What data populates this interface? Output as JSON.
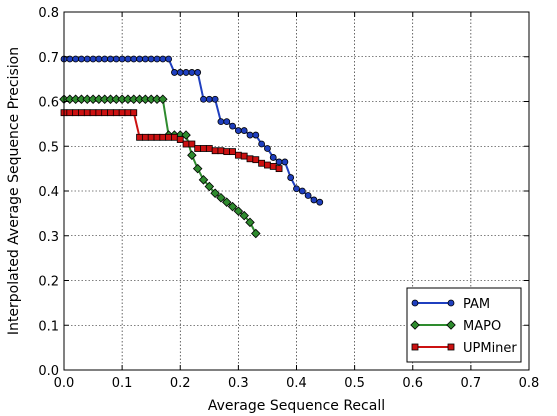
{
  "chart_data": {
    "type": "line",
    "xlabel": "Average Sequence Recall",
    "ylabel": "Interpolated Average Sequence Precision",
    "xlim": [
      0.0,
      0.8
    ],
    "ylim": [
      0.0,
      0.8
    ],
    "xticks": [
      "0.0",
      "0.1",
      "0.2",
      "0.3",
      "0.4",
      "0.5",
      "0.6",
      "0.7",
      "0.8"
    ],
    "yticks": [
      "0.0",
      "0.1",
      "0.2",
      "0.3",
      "0.4",
      "0.5",
      "0.6",
      "0.7",
      "0.8"
    ],
    "grid": true,
    "legend_position": "bottom-right",
    "series": [
      {
        "name": "PAM",
        "color": "#1f3fbf",
        "marker": "circle",
        "x": [
          0.0,
          0.01,
          0.02,
          0.03,
          0.04,
          0.05,
          0.06,
          0.07,
          0.08,
          0.09,
          0.1,
          0.11,
          0.12,
          0.13,
          0.14,
          0.15,
          0.16,
          0.17,
          0.18,
          0.19,
          0.2,
          0.21,
          0.22,
          0.23,
          0.24,
          0.25,
          0.26,
          0.27,
          0.28,
          0.29,
          0.3,
          0.31,
          0.32,
          0.33,
          0.34,
          0.35,
          0.36,
          0.37,
          0.38,
          0.39,
          0.4,
          0.41,
          0.42,
          0.43,
          0.44
        ],
        "y": [
          0.695,
          0.695,
          0.695,
          0.695,
          0.695,
          0.695,
          0.695,
          0.695,
          0.695,
          0.695,
          0.695,
          0.695,
          0.695,
          0.695,
          0.695,
          0.695,
          0.695,
          0.695,
          0.695,
          0.665,
          0.665,
          0.665,
          0.665,
          0.665,
          0.605,
          0.605,
          0.605,
          0.555,
          0.555,
          0.545,
          0.535,
          0.535,
          0.525,
          0.525,
          0.505,
          0.495,
          0.475,
          0.465,
          0.465,
          0.43,
          0.405,
          0.4,
          0.39,
          0.38,
          0.375
        ]
      },
      {
        "name": "MAPO",
        "color": "#2e8b2e",
        "marker": "diamond",
        "x": [
          0.0,
          0.01,
          0.02,
          0.03,
          0.04,
          0.05,
          0.06,
          0.07,
          0.08,
          0.09,
          0.1,
          0.11,
          0.12,
          0.13,
          0.14,
          0.15,
          0.16,
          0.17,
          0.18,
          0.19,
          0.2,
          0.21,
          0.22,
          0.23,
          0.24,
          0.25,
          0.26,
          0.27,
          0.28,
          0.29,
          0.3,
          0.31,
          0.32,
          0.33
        ],
        "y": [
          0.605,
          0.605,
          0.605,
          0.605,
          0.605,
          0.605,
          0.605,
          0.605,
          0.605,
          0.605,
          0.605,
          0.605,
          0.605,
          0.605,
          0.605,
          0.605,
          0.605,
          0.605,
          0.525,
          0.525,
          0.525,
          0.525,
          0.48,
          0.45,
          0.425,
          0.41,
          0.395,
          0.385,
          0.375,
          0.365,
          0.355,
          0.345,
          0.33,
          0.305
        ]
      },
      {
        "name": "UPMiner",
        "color": "#cc1111",
        "marker": "square",
        "x": [
          0.0,
          0.01,
          0.02,
          0.03,
          0.04,
          0.05,
          0.06,
          0.07,
          0.08,
          0.09,
          0.1,
          0.11,
          0.12,
          0.13,
          0.14,
          0.15,
          0.16,
          0.17,
          0.18,
          0.19,
          0.2,
          0.21,
          0.22,
          0.23,
          0.24,
          0.25,
          0.26,
          0.27,
          0.28,
          0.29,
          0.3,
          0.31,
          0.32,
          0.33,
          0.34,
          0.35,
          0.36,
          0.37
        ],
        "y": [
          0.575,
          0.575,
          0.575,
          0.575,
          0.575,
          0.575,
          0.575,
          0.575,
          0.575,
          0.575,
          0.575,
          0.575,
          0.575,
          0.52,
          0.52,
          0.52,
          0.52,
          0.52,
          0.52,
          0.52,
          0.515,
          0.505,
          0.505,
          0.495,
          0.495,
          0.495,
          0.49,
          0.49,
          0.488,
          0.488,
          0.48,
          0.478,
          0.472,
          0.47,
          0.462,
          0.458,
          0.455,
          0.45
        ]
      }
    ]
  }
}
